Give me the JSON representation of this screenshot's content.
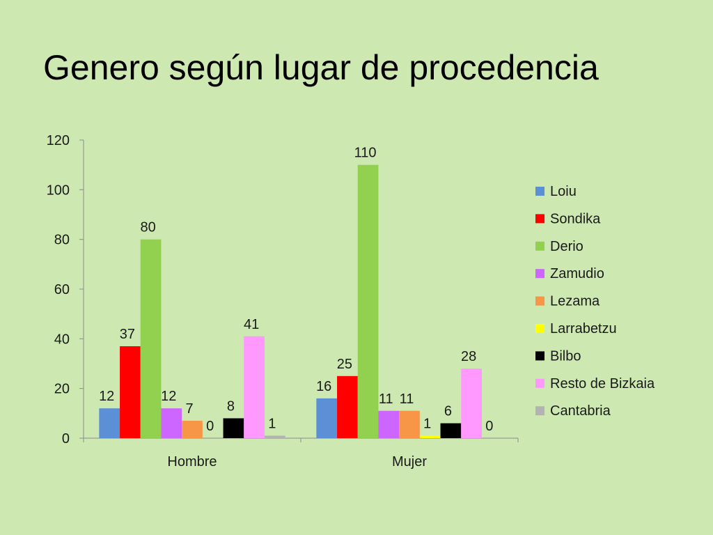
{
  "title": "Genero según lugar de procedencia",
  "chart_data": {
    "type": "bar",
    "categories": [
      "Hombre",
      "Mujer"
    ],
    "series": [
      {
        "name": "Loiu",
        "values": [
          12,
          16
        ],
        "color": "#5b8fd6"
      },
      {
        "name": "Sondika",
        "values": [
          37,
          25
        ],
        "color": "#ff0000"
      },
      {
        "name": "Derio",
        "values": [
          80,
          110
        ],
        "color": "#92d050"
      },
      {
        "name": "Zamudio",
        "values": [
          12,
          11
        ],
        "color": "#cc66ff"
      },
      {
        "name": "Lezama",
        "values": [
          7,
          11
        ],
        "color": "#f79646"
      },
      {
        "name": "Larrabetzu",
        "values": [
          0,
          1
        ],
        "color": "#ffff00"
      },
      {
        "name": "Bilbo",
        "values": [
          8,
          6
        ],
        "color": "#000000"
      },
      {
        "name": "Resto de Bizkaia",
        "values": [
          41,
          28
        ],
        "color": "#ff99ff"
      },
      {
        "name": "Cantabria",
        "values": [
          1,
          0
        ],
        "color": "#b3b3b3"
      }
    ],
    "y_ticks": [
      "0",
      "20",
      "40",
      "60",
      "80",
      "100",
      "120"
    ],
    "ylim": [
      0,
      120
    ],
    "grid": false,
    "legend_position": "right"
  }
}
